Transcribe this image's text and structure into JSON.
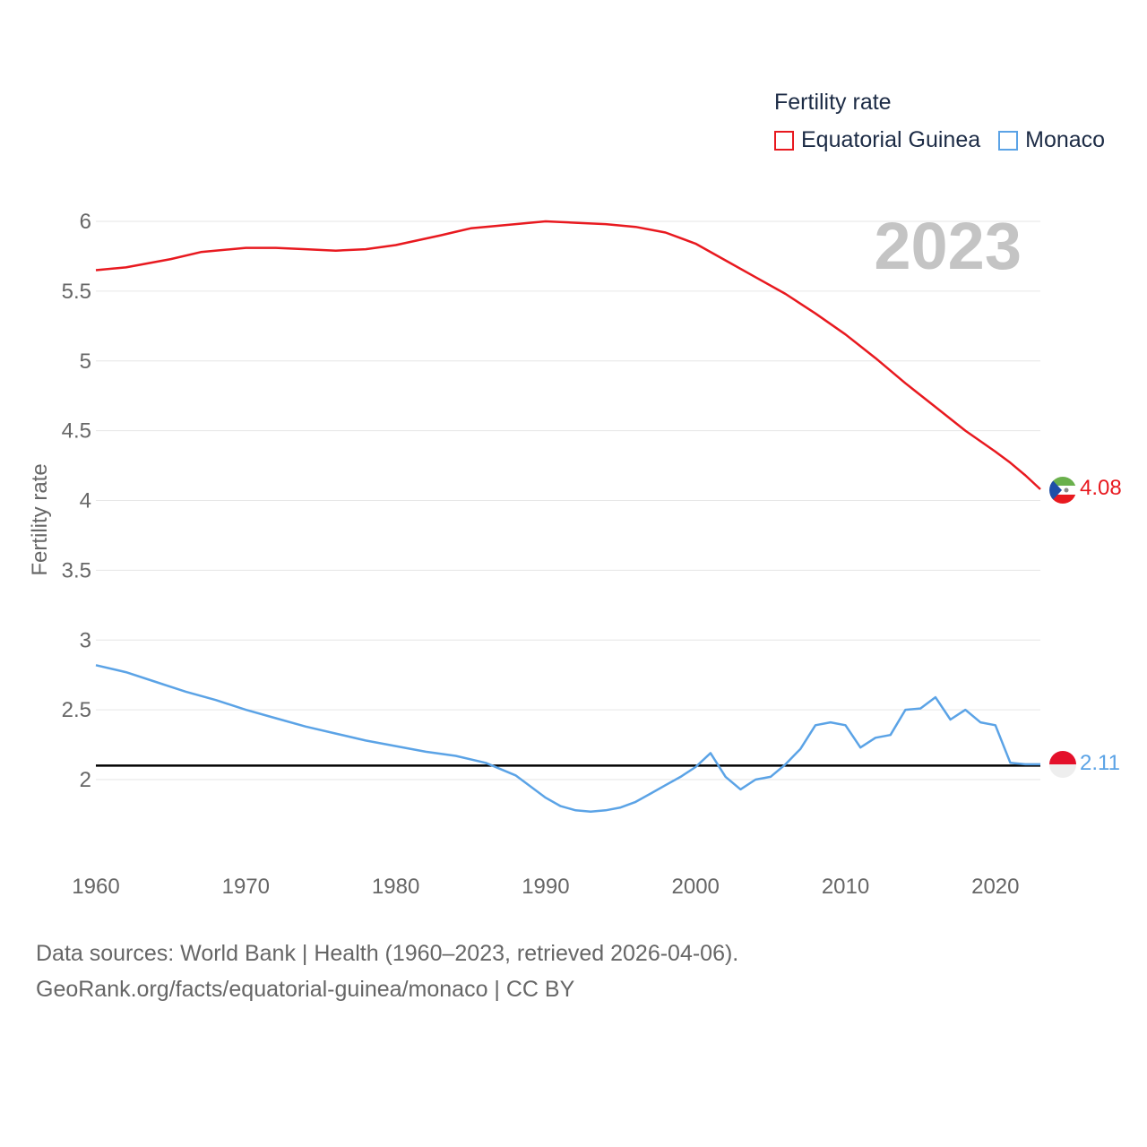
{
  "chart_data": {
    "type": "line",
    "year_label": "2023",
    "ylabel": "Fertility rate",
    "xlim": [
      1960,
      2023
    ],
    "ylim": [
      1.55,
      6.1
    ],
    "yticks": [
      2,
      2.5,
      3,
      3.5,
      4,
      4.5,
      5,
      5.5,
      6
    ],
    "ytick_labels": [
      "2",
      "2.5",
      "3",
      "3.5",
      "4",
      "4.5",
      "5",
      "5.5",
      "6"
    ],
    "xticks": [
      1960,
      1970,
      1980,
      1990,
      2000,
      2010,
      2020
    ],
    "xtick_labels": [
      "1960",
      "1970",
      "1980",
      "1990",
      "2000",
      "2010",
      "2020"
    ],
    "reference_line": 2.1,
    "legend_title": "Fertility rate",
    "series": [
      {
        "name": "Equatorial Guinea",
        "color": "#e8191f",
        "end_label": "4.08",
        "x": [
          1960,
          1962,
          1965,
          1967,
          1970,
          1972,
          1974,
          1976,
          1978,
          1980,
          1983,
          1985,
          1988,
          1990,
          1992,
          1994,
          1996,
          1998,
          2000,
          2002,
          2004,
          2006,
          2008,
          2010,
          2012,
          2014,
          2016,
          2018,
          2020,
          2021,
          2022,
          2023
        ],
        "values": [
          5.65,
          5.67,
          5.73,
          5.78,
          5.81,
          5.81,
          5.8,
          5.79,
          5.8,
          5.83,
          5.9,
          5.95,
          5.98,
          6.0,
          5.99,
          5.98,
          5.96,
          5.92,
          5.84,
          5.72,
          5.6,
          5.48,
          5.34,
          5.19,
          5.02,
          4.84,
          4.67,
          4.5,
          4.35,
          4.27,
          4.18,
          4.08
        ]
      },
      {
        "name": "Monaco",
        "color": "#5ba3e6",
        "end_label": "2.11",
        "x": [
          1960,
          1962,
          1964,
          1966,
          1968,
          1970,
          1972,
          1974,
          1976,
          1978,
          1980,
          1982,
          1984,
          1986,
          1988,
          1990,
          1991,
          1992,
          1993,
          1994,
          1995,
          1996,
          1997,
          1998,
          1999,
          2000,
          2001,
          2002,
          2003,
          2004,
          2005,
          2006,
          2007,
          2008,
          2009,
          2010,
          2011,
          2012,
          2013,
          2014,
          2015,
          2016,
          2017,
          2018,
          2019,
          2020,
          2021,
          2022,
          2023
        ],
        "values": [
          2.82,
          2.77,
          2.7,
          2.63,
          2.57,
          2.5,
          2.44,
          2.38,
          2.33,
          2.28,
          2.24,
          2.2,
          2.17,
          2.12,
          2.03,
          1.87,
          1.81,
          1.78,
          1.77,
          1.78,
          1.8,
          1.84,
          1.9,
          1.96,
          2.02,
          2.09,
          2.19,
          2.02,
          1.93,
          2.0,
          2.02,
          2.11,
          2.22,
          2.39,
          2.41,
          2.39,
          2.23,
          2.3,
          2.32,
          2.5,
          2.51,
          2.59,
          2.43,
          2.5,
          2.41,
          2.39,
          2.12,
          2.11,
          2.11
        ]
      }
    ]
  },
  "legend": {
    "title": "Fertility rate",
    "items": [
      "Equatorial Guinea",
      "Monaco"
    ]
  },
  "sources": {
    "line1": "Data sources: World Bank | Health (1960–2023, retrieved 2026-04-06).",
    "line2": "GeoRank.org/facts/equatorial-guinea/monaco | CC BY"
  },
  "icons": {
    "flag_eg": "equatorial-guinea-flag-icon",
    "flag_mc": "monaco-flag-icon"
  }
}
